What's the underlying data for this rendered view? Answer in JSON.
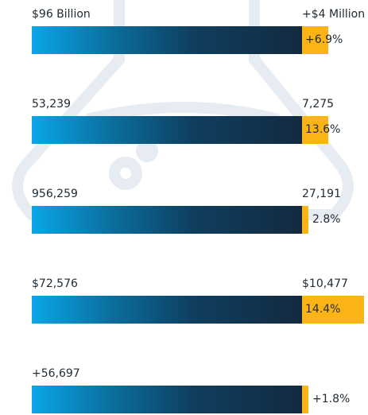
{
  "rows": [
    {
      "label": "$96 Billion",
      "change": "+$4 Million",
      "percent": "+6.9%"
    },
    {
      "label": "53,239",
      "change": "7,275",
      "percent": "13.6%"
    },
    {
      "label": "956,259",
      "change": "27,191",
      "percent": "2.8%"
    },
    {
      "label": "$72,576",
      "change": "$10,477",
      "percent": "14.4%"
    },
    {
      "label": "+56,697",
      "change": null,
      "percent": "+1.8%"
    }
  ]
}
